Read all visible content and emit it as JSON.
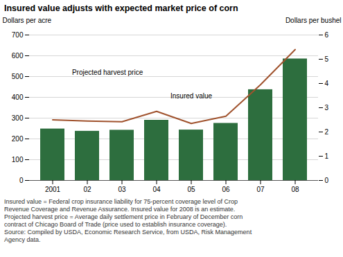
{
  "chart_data": {
    "type": "bar",
    "title": "Insured value adjusts with expected market price of corn",
    "categories": [
      "2001",
      "02",
      "03",
      "04",
      "05",
      "06",
      "07",
      "08"
    ],
    "series": [
      {
        "name": "Insured value",
        "type": "bar",
        "color": "#2D6E3E",
        "values": [
          248,
          237,
          242,
          290,
          243,
          275,
          437,
          585
        ]
      },
      {
        "name": "Projected harvest price",
        "type": "line",
        "color": "#A0522D",
        "axis": "y2",
        "values": [
          2.5,
          2.45,
          2.42,
          2.85,
          2.35,
          2.65,
          3.95,
          5.4
        ]
      }
    ],
    "ylabel": "Dollars per acre",
    "y2label": "Dollars per bushel",
    "ylim": [
      0,
      700
    ],
    "yticks": [
      0,
      100,
      200,
      300,
      400,
      500,
      600,
      700
    ],
    "y2lim": [
      0,
      6
    ],
    "y2ticks": [
      0,
      1,
      2,
      3,
      4,
      5,
      6
    ],
    "grid": true,
    "notes": [
      "Insured value = Federal crop insurance liability for 75-percent coverage level of Crop",
      "Revenue Coverage and Revenue Assurance.  Insured value for 2008 is an estimate.",
      "Projected harvest price = Average daily settlement price in February of December corn",
      "contract of Chicago Board of Trade (price used to establish insurance coverage).",
      "Source:  Compiled by USDA, Economic Research Service, from USDA, Risk Management",
      "Agency data."
    ]
  }
}
